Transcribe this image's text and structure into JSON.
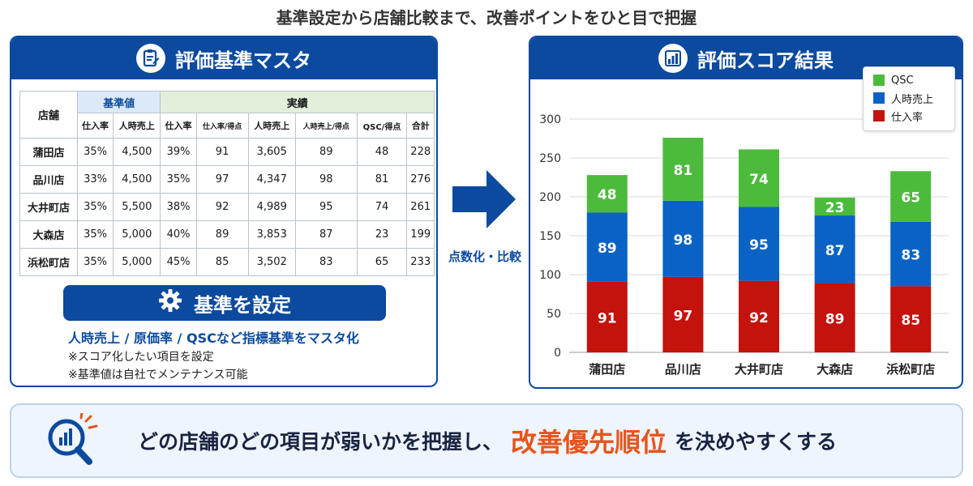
{
  "headline": "基準設定から店舗比較まで、改善ポイントをひと目で把握",
  "left_panel": {
    "title": "評価基準マスタ",
    "icon": "clipboard-icon",
    "table": {
      "store_header": "店舗",
      "group_base": "基準値",
      "group_actual": "実績",
      "base_columns": [
        "仕入率",
        "人時売上"
      ],
      "actual_columns": [
        "仕入率",
        "仕入率/得点",
        "人時売上",
        "人時売上/得点",
        "QSC/得点",
        "合計"
      ],
      "rows": [
        {
          "store": "蒲田店",
          "base_purchase": "35%",
          "base_sales": "4,500",
          "purchase": "39%",
          "purchase_score": "91",
          "sales": "3,605",
          "sales_score": "89",
          "qsc": "48",
          "total": "228"
        },
        {
          "store": "品川店",
          "base_purchase": "33%",
          "base_sales": "4,500",
          "purchase": "35%",
          "purchase_score": "97",
          "sales": "4,347",
          "sales_score": "98",
          "qsc": "81",
          "total": "276"
        },
        {
          "store": "大井町店",
          "base_purchase": "35%",
          "base_sales": "5,500",
          "purchase": "38%",
          "purchase_score": "92",
          "sales": "4,989",
          "sales_score": "95",
          "qsc": "74",
          "total": "261"
        },
        {
          "store": "大森店",
          "base_purchase": "35%",
          "base_sales": "5,000",
          "purchase": "40%",
          "purchase_score": "89",
          "sales": "3,853",
          "sales_score": "87",
          "qsc": "23",
          "total": "199"
        },
        {
          "store": "浜松町店",
          "base_purchase": "35%",
          "base_sales": "5,000",
          "purchase": "45%",
          "purchase_score": "85",
          "sales": "3,502",
          "sales_score": "83",
          "qsc": "65",
          "total": "233"
        }
      ]
    },
    "set_button": "基準を設定",
    "set_icon": "gear-icon",
    "note_main": "人時売上 / 原価率 / QSCなど指標基準をマスタ化",
    "notes": [
      "※スコア化したい項目を設定",
      "※基準値は自社でメンテナンス可能"
    ]
  },
  "arrow_label": "点数化・比較",
  "right_panel": {
    "title": "評価スコア結果",
    "icon": "bar-chart-icon"
  },
  "chart_data": {
    "type": "bar",
    "stacked": true,
    "categories": [
      "蒲田店",
      "品川店",
      "大井町店",
      "大森店",
      "浜松町店"
    ],
    "series": [
      {
        "name": "仕入率",
        "color": "#c4120c",
        "values": [
          91,
          97,
          92,
          89,
          85
        ]
      },
      {
        "name": "人時売上",
        "color": "#0a63c4",
        "values": [
          89,
          98,
          95,
          87,
          83
        ]
      },
      {
        "name": "QSC",
        "color": "#4cbb3c",
        "values": [
          48,
          81,
          74,
          23,
          65
        ]
      }
    ],
    "legend_order": [
      "QSC",
      "人時売上",
      "仕入率"
    ],
    "yticks": [
      0,
      50,
      100,
      150,
      200,
      250,
      300
    ],
    "ylim": [
      0,
      300
    ],
    "grid": true,
    "legend_position": "top-right"
  },
  "banner": {
    "icon": "magnifier-chart-icon",
    "text_before": "どの店舗のどの項目が弱いかを把握し、",
    "emphasis": "改善優先順位",
    "text_after": "を決めやすくする"
  }
}
